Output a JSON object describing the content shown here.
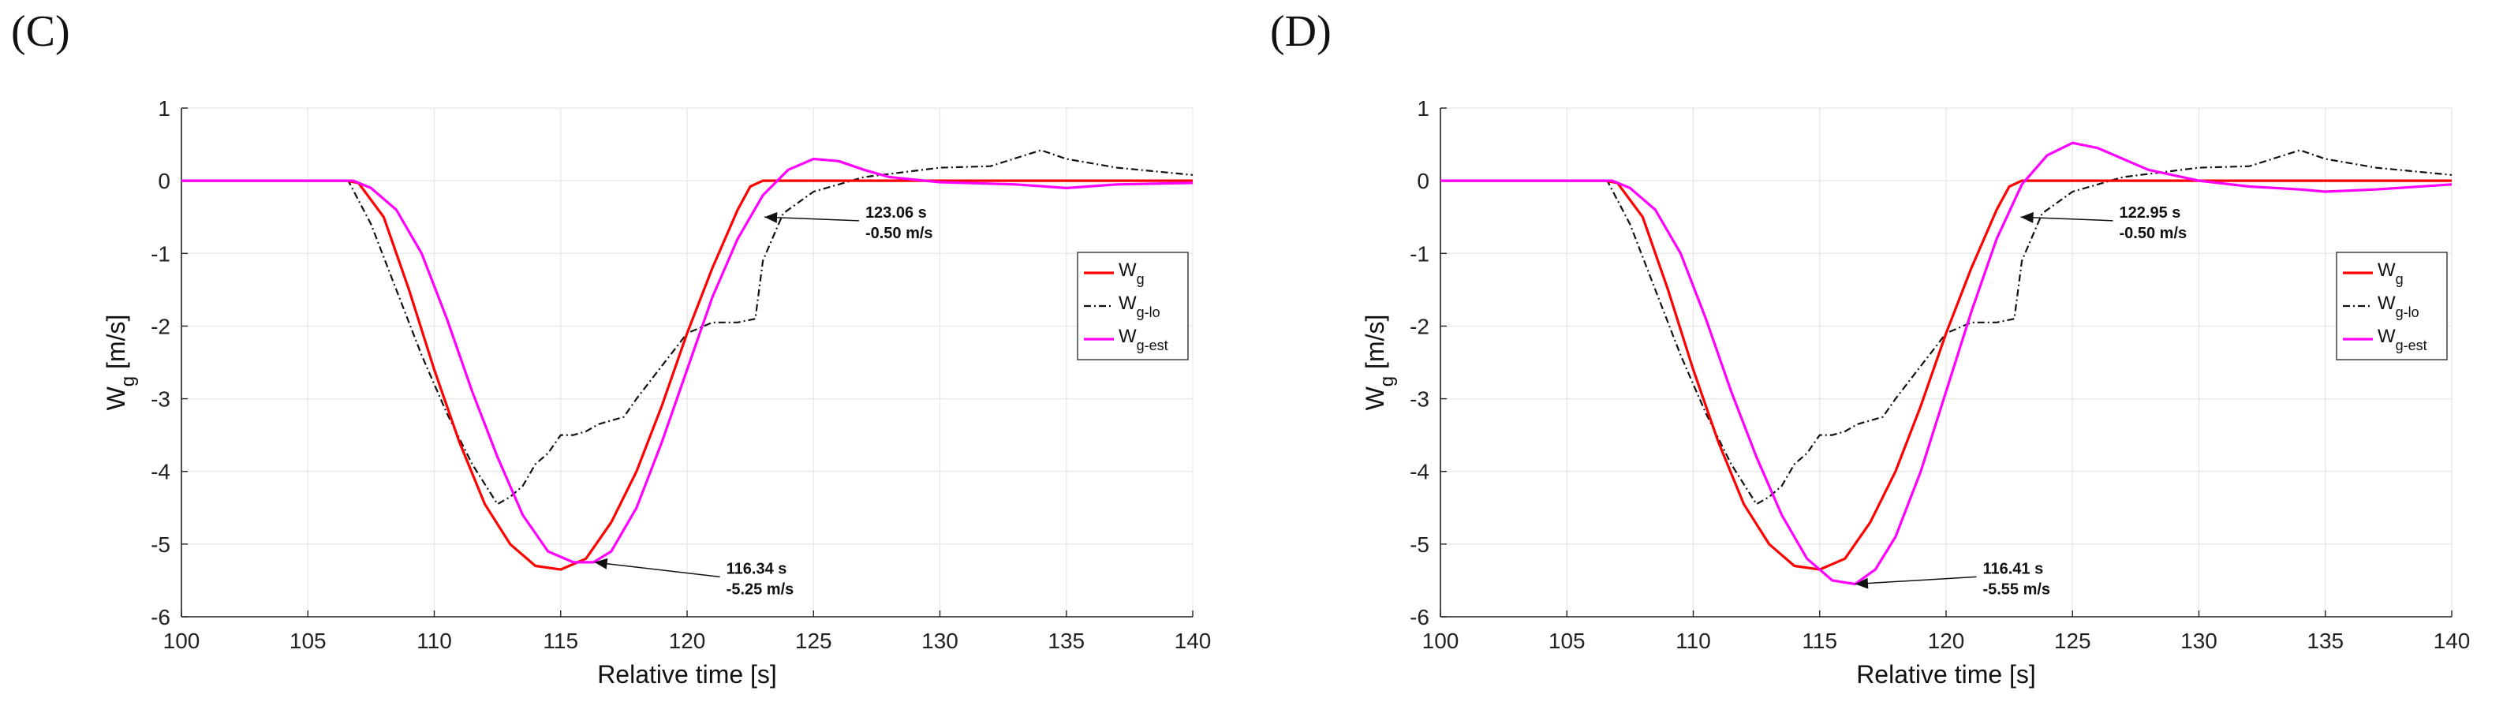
{
  "chart_data": [
    {
      "panel_label": "(C)",
      "type": "line",
      "xlabel": "Relative time [s]",
      "ylabel_main": "W",
      "ylabel_sub": "g",
      "ylabel_unit": " [m/s]",
      "xlim": [
        100,
        140
      ],
      "ylim": [
        -6,
        1
      ],
      "xticks": [
        100,
        105,
        110,
        115,
        120,
        125,
        130,
        135,
        140
      ],
      "yticks": [
        1,
        0,
        -1,
        -2,
        -3,
        -4,
        -5,
        -6
      ],
      "grid": true,
      "legend_position": "right",
      "series": [
        {
          "name": "Wg",
          "label_main": "W",
          "label_sub": "g",
          "color": "#ff0000",
          "dash": "solid",
          "x": [
            100,
            106.5,
            107,
            108,
            109,
            110,
            111,
            112,
            113,
            114,
            115,
            116,
            117,
            118,
            119,
            120,
            121,
            122,
            122.5,
            123,
            124,
            130,
            135,
            140
          ],
          "y": [
            0,
            0,
            -0.03,
            -0.5,
            -1.5,
            -2.6,
            -3.6,
            -4.45,
            -5.0,
            -5.3,
            -5.35,
            -5.2,
            -4.7,
            -4.0,
            -3.1,
            -2.1,
            -1.2,
            -0.4,
            -0.08,
            0,
            0,
            0,
            0,
            0
          ]
        },
        {
          "name": "Wg-lo",
          "label_main": "W",
          "label_sub": "g-lo",
          "color": "#111111",
          "dash": "dashdot",
          "x": [
            100,
            106.6,
            107.5,
            108.5,
            109.5,
            110.5,
            111.5,
            112.5,
            113,
            113.5,
            114,
            114.5,
            115,
            115.5,
            116,
            116.5,
            117,
            117.5,
            118,
            119,
            120,
            121,
            122,
            122.7,
            123,
            123.8,
            125,
            127,
            130,
            132,
            134,
            135,
            137,
            140
          ],
          "y": [
            0,
            0,
            -0.6,
            -1.5,
            -2.4,
            -3.2,
            -3.9,
            -4.45,
            -4.35,
            -4.2,
            -3.9,
            -3.75,
            -3.5,
            -3.5,
            -3.45,
            -3.35,
            -3.3,
            -3.25,
            -3.0,
            -2.55,
            -2.1,
            -1.95,
            -1.95,
            -1.9,
            -1.1,
            -0.45,
            -0.15,
            0.05,
            0.18,
            0.2,
            0.42,
            0.3,
            0.18,
            0.08
          ]
        },
        {
          "name": "Wg-est",
          "label_main": "W",
          "label_sub": "g-est",
          "color": "#ff00ff",
          "dash": "solid",
          "x": [
            100,
            106.8,
            107.5,
            108.5,
            109.5,
            110.5,
            111.5,
            112.5,
            113.5,
            114.5,
            115.5,
            116.3,
            117,
            118,
            119,
            120,
            121,
            122,
            123,
            124,
            125,
            126,
            127,
            128,
            130,
            133,
            135,
            137,
            140
          ],
          "y": [
            0,
            0,
            -0.1,
            -0.4,
            -1.0,
            -1.9,
            -2.9,
            -3.8,
            -4.6,
            -5.1,
            -5.25,
            -5.25,
            -5.1,
            -4.5,
            -3.6,
            -2.6,
            -1.6,
            -0.8,
            -0.2,
            0.15,
            0.3,
            0.27,
            0.15,
            0.05,
            -0.02,
            -0.05,
            -0.1,
            -0.05,
            -0.03
          ]
        }
      ],
      "annotations": [
        {
          "line1": "123.06 s",
          "line2": "-0.50 m/s",
          "x": 123.06,
          "y": -0.5,
          "text_x": 126.8,
          "text_y": -0.55
        },
        {
          "line1": "116.34 s",
          "line2": "-5.25 m/s",
          "x": 116.34,
          "y": -5.25,
          "text_x": 121.3,
          "text_y": -5.45
        }
      ]
    },
    {
      "panel_label": "(D)",
      "type": "line",
      "xlabel": "Relative time [s]",
      "ylabel_main": "W",
      "ylabel_sub": "g",
      "ylabel_unit": " [m/s]",
      "xlim": [
        100,
        140
      ],
      "ylim": [
        -6,
        1
      ],
      "xticks": [
        100,
        105,
        110,
        115,
        120,
        125,
        130,
        135,
        140
      ],
      "yticks": [
        1,
        0,
        -1,
        -2,
        -3,
        -4,
        -5,
        -6
      ],
      "grid": true,
      "legend_position": "right",
      "series": [
        {
          "name": "Wg",
          "label_main": "W",
          "label_sub": "g",
          "color": "#ff0000",
          "dash": "solid",
          "x": [
            100,
            106.5,
            107,
            108,
            109,
            110,
            111,
            112,
            113,
            114,
            115,
            116,
            117,
            118,
            119,
            120,
            121,
            122,
            122.5,
            123,
            124,
            130,
            135,
            140
          ],
          "y": [
            0,
            0,
            -0.03,
            -0.5,
            -1.5,
            -2.6,
            -3.6,
            -4.45,
            -5.0,
            -5.3,
            -5.35,
            -5.2,
            -4.7,
            -4.0,
            -3.1,
            -2.1,
            -1.2,
            -0.4,
            -0.08,
            0,
            0,
            0,
            0,
            0
          ]
        },
        {
          "name": "Wg-lo",
          "label_main": "W",
          "label_sub": "g-lo",
          "color": "#111111",
          "dash": "dashdot",
          "x": [
            100,
            106.6,
            107.5,
            108.5,
            109.5,
            110.5,
            111.5,
            112.5,
            113,
            113.5,
            114,
            114.5,
            115,
            115.5,
            116,
            116.5,
            117,
            117.5,
            118,
            119,
            120,
            121,
            122,
            122.7,
            123,
            123.8,
            125,
            127,
            130,
            132,
            134,
            135,
            137,
            140
          ],
          "y": [
            0,
            0,
            -0.6,
            -1.5,
            -2.4,
            -3.2,
            -3.9,
            -4.45,
            -4.35,
            -4.2,
            -3.9,
            -3.75,
            -3.5,
            -3.5,
            -3.45,
            -3.35,
            -3.3,
            -3.25,
            -3.0,
            -2.55,
            -2.1,
            -1.95,
            -1.95,
            -1.9,
            -1.1,
            -0.45,
            -0.15,
            0.05,
            0.18,
            0.2,
            0.42,
            0.3,
            0.18,
            0.08
          ]
        },
        {
          "name": "Wg-est",
          "label_main": "W",
          "label_sub": "g-est",
          "color": "#ff00ff",
          "dash": "solid",
          "x": [
            100,
            106.8,
            107.5,
            108.5,
            109.5,
            110.5,
            111.5,
            112.5,
            113.5,
            114.5,
            115.5,
            116.4,
            117.2,
            118,
            119,
            120,
            121,
            122,
            123,
            124,
            125,
            126,
            127,
            128,
            130,
            132,
            134,
            135,
            137,
            140
          ],
          "y": [
            0,
            0,
            -0.1,
            -0.4,
            -1.0,
            -1.9,
            -2.9,
            -3.8,
            -4.6,
            -5.2,
            -5.5,
            -5.55,
            -5.35,
            -4.9,
            -4.0,
            -2.9,
            -1.8,
            -0.8,
            -0.05,
            0.35,
            0.52,
            0.45,
            0.3,
            0.15,
            0.0,
            -0.08,
            -0.12,
            -0.15,
            -0.12,
            -0.05
          ]
        }
      ],
      "annotations": [
        {
          "line1": "122.95 s",
          "line2": "-0.50 m/s",
          "x": 122.95,
          "y": -0.5,
          "text_x": 126.6,
          "text_y": -0.55
        },
        {
          "line1": "116.41 s",
          "line2": "-5.55 m/s",
          "x": 116.41,
          "y": -5.55,
          "text_x": 121.2,
          "text_y": -5.45
        }
      ]
    }
  ]
}
